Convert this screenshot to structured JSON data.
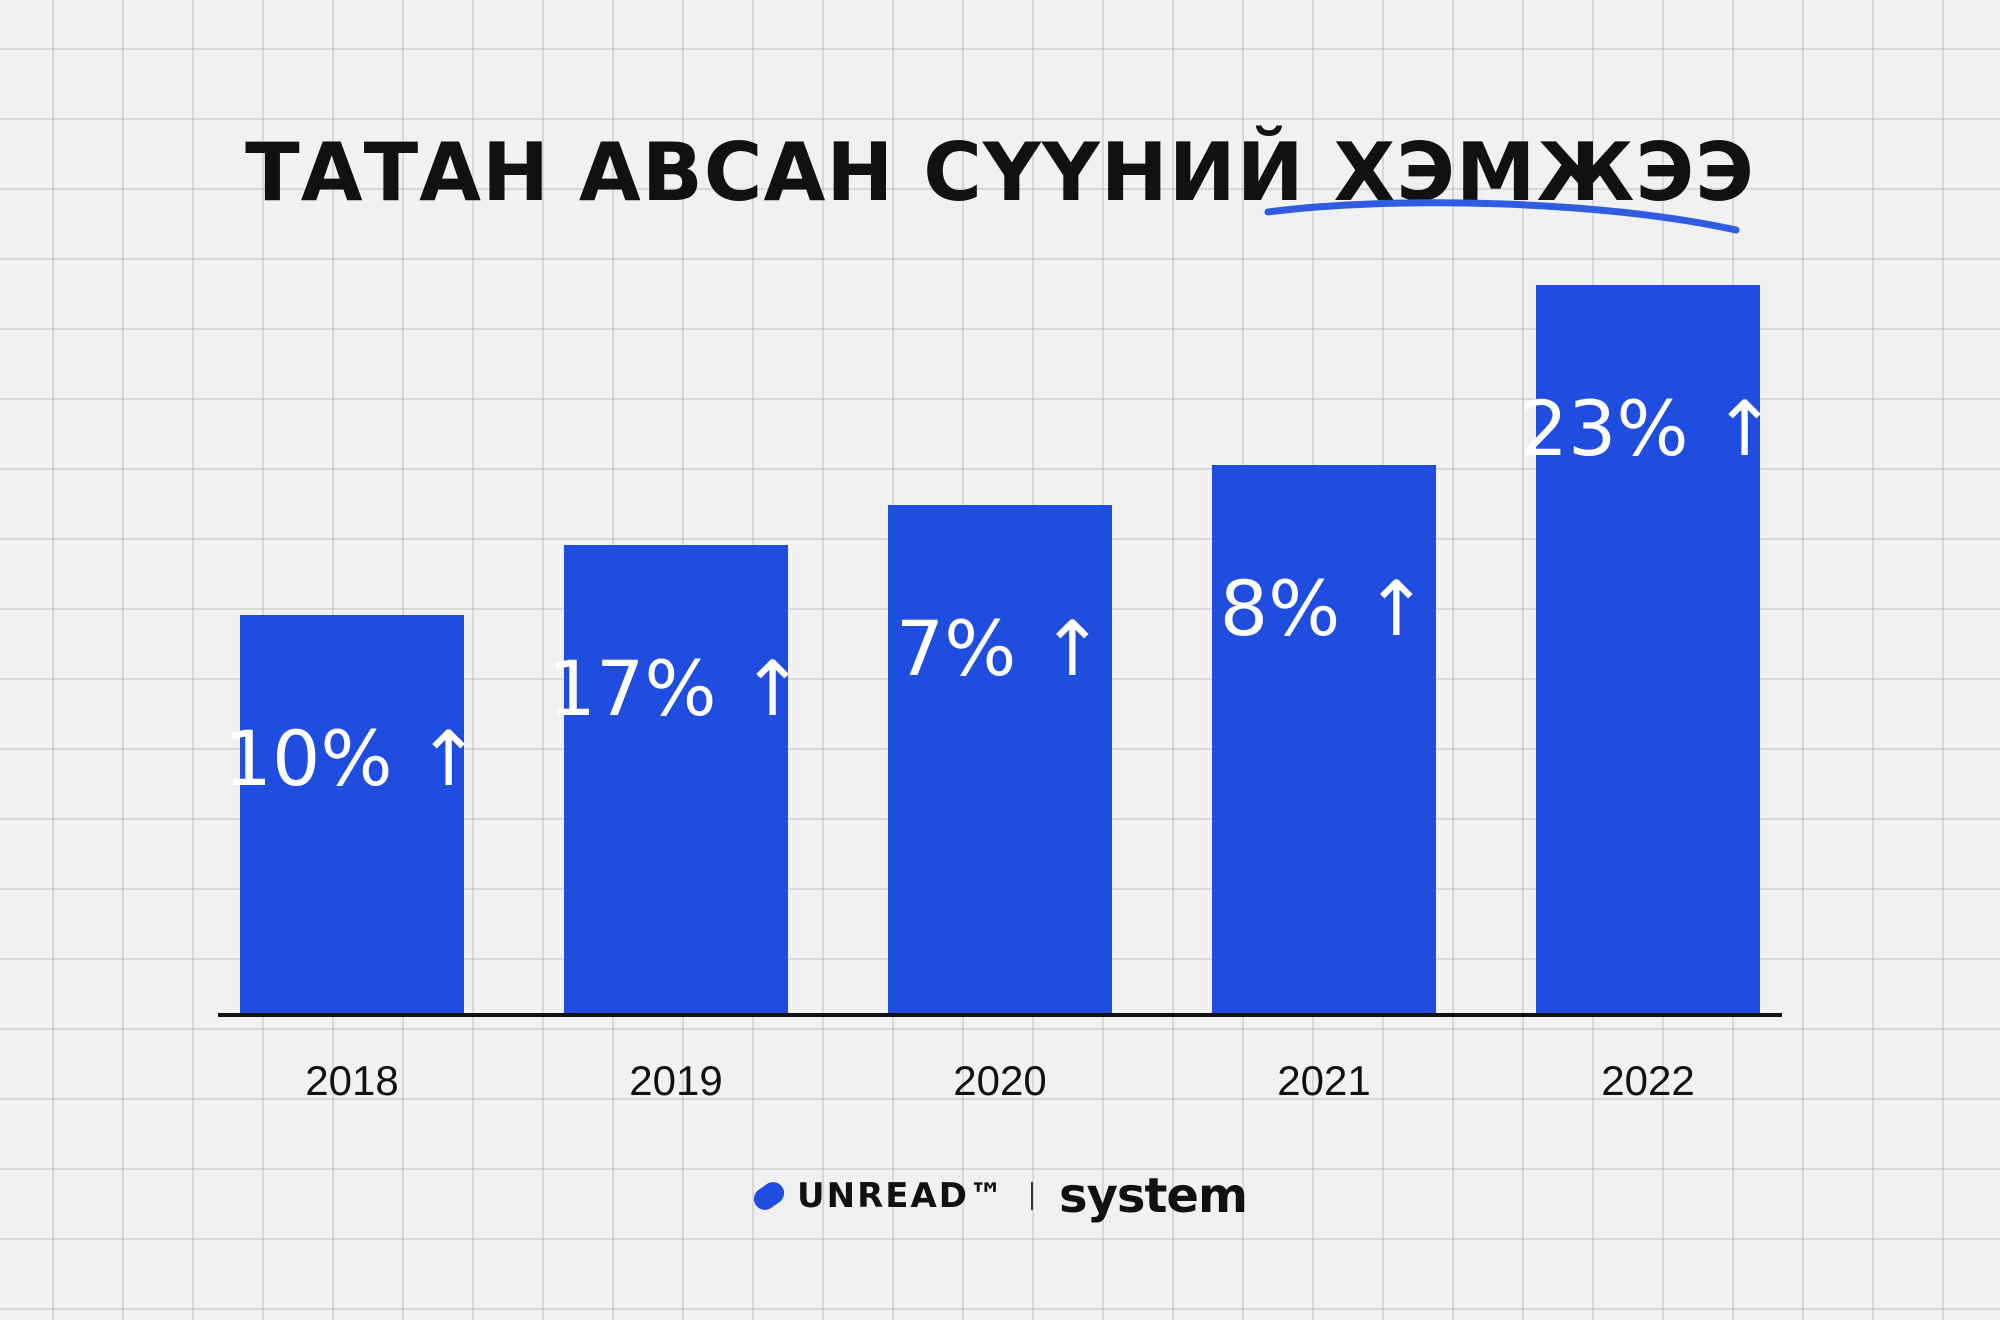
{
  "chart_data": {
    "type": "bar",
    "title_main": "ТАТАН АВСАН СҮҮНИЙ",
    "title_highlight": "ХЭМЖЭЭ",
    "categories": [
      "2018",
      "2019",
      "2020",
      "2021",
      "2022"
    ],
    "values": [
      10,
      17,
      7,
      8,
      23
    ],
    "bar_heights": [
      0.4,
      0.47,
      0.51,
      0.55,
      0.73
    ],
    "labels": [
      "10%",
      "17%",
      "7%",
      "8%",
      "23%"
    ],
    "label_suffix": "↑",
    "bar_color": "#1f4de0",
    "underline_color": "#2f5ce0",
    "grid": true,
    "legend": "none"
  },
  "footer": {
    "brand1": "UNREAD™",
    "brand2": "system"
  }
}
